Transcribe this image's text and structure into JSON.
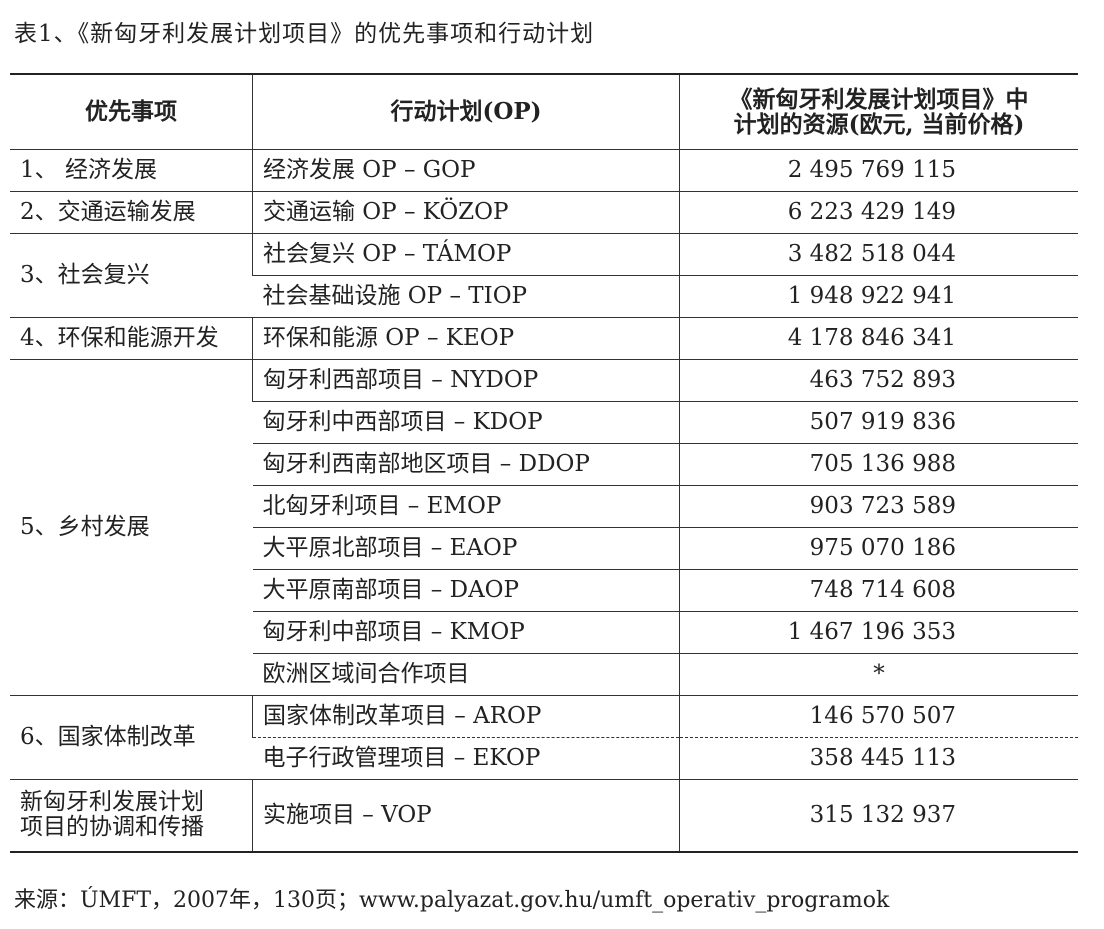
{
  "caption": "表1、《新匈牙利发展计划项目》的优先事项和行动计划",
  "headers": {
    "priority": "优先事项",
    "op": "行动计划(OP)",
    "resources_line1": "《新匈牙利发展计划项目》中",
    "resources_line2": "计划的资源(欧元, 当前价格)"
  },
  "groups": [
    {
      "priority": "1、 经济发展",
      "rows": [
        {
          "op": "经济发展 OP – GOP",
          "amount": "2 495 769 115"
        }
      ]
    },
    {
      "priority": "2、交通运输发展",
      "rows": [
        {
          "op": "交通运输 OP – KÖZOP",
          "amount": "6 223 429 149"
        }
      ]
    },
    {
      "priority": "3、社会复兴",
      "rows": [
        {
          "op": "社会复兴 OP – TÁMOP",
          "amount": "3 482 518 044"
        },
        {
          "op": "社会基础设施 OP – TIOP",
          "amount": "1 948 922 941"
        }
      ]
    },
    {
      "priority": "4、环保和能源开发",
      "rows": [
        {
          "op": "环保和能源 OP – KEOP",
          "amount": "4 178 846 341"
        }
      ]
    },
    {
      "priority": "5、乡村发展",
      "rows": [
        {
          "op": "匈牙利西部项目 – NYDOP",
          "amount": "463 752 893"
        },
        {
          "op": "匈牙利中西部项目 – KDOP",
          "amount": "507 919 836"
        },
        {
          "op": "匈牙利西南部地区项目 – DDOP",
          "amount": "705 136 988"
        },
        {
          "op": "北匈牙利项目 – EMOP",
          "amount": "903 723 589"
        },
        {
          "op": "大平原北部项目 – EAOP",
          "amount": "975 070 186"
        },
        {
          "op": "大平原南部项目 – DAOP",
          "amount": "748 714 608"
        },
        {
          "op": "匈牙利中部项目 – KMOP",
          "amount": "1 467 196 353"
        },
        {
          "op": "欧洲区域间合作项目",
          "amount": "*"
        }
      ]
    },
    {
      "priority": "6、国家体制改革",
      "rows": [
        {
          "op": "国家体制改革项目 – AROP",
          "amount": "146 570 507"
        },
        {
          "op": "电子行政管理项目 – EKOP",
          "amount": "358 445 113"
        }
      ]
    },
    {
      "priority_line1": "新匈牙利发展计划",
      "priority_line2": "项目的协调和传播",
      "rows": [
        {
          "op": "实施项目 – VOP",
          "amount": "315 132 937"
        }
      ]
    }
  ],
  "source": "来源：ÚMFT，2007年，130页；www.palyazat.gov.hu/umft_operativ_programok"
}
